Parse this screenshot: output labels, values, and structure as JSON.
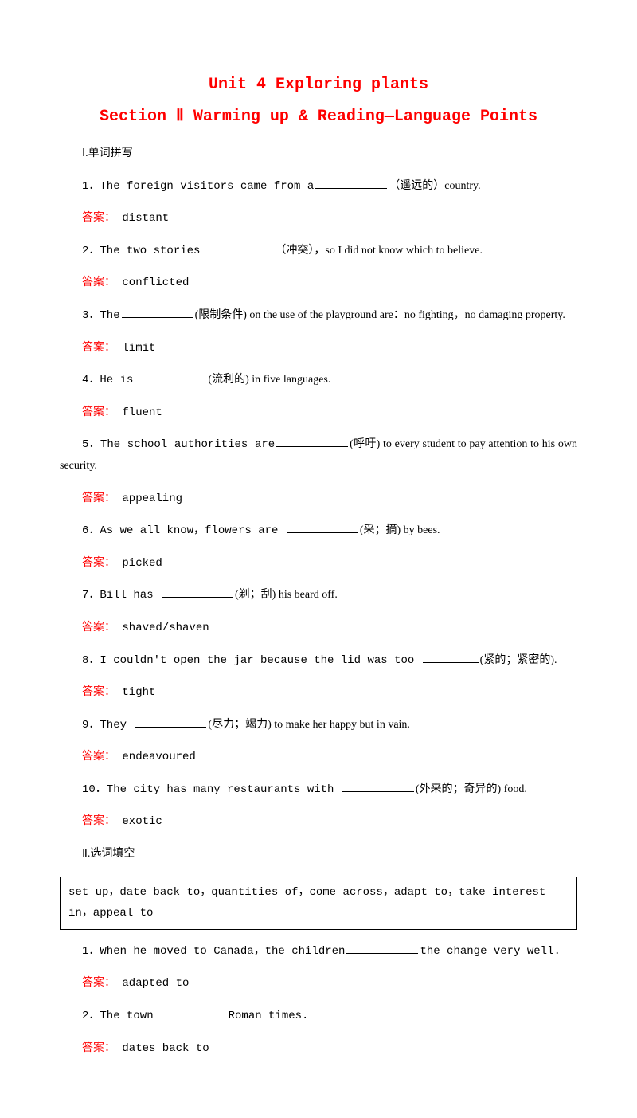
{
  "title1": "Unit 4  Exploring plants",
  "title2": "Section Ⅱ  Warming up & Reading—Language Points",
  "sectionI": "Ⅰ.单词拼写",
  "answerLabel": "答案：",
  "q1_a": "1．The foreign visitors came from  a",
  "q1_b": "（遥远的）country.",
  "a1": "  distant",
  "q2_a": "2．The two stories",
  "q2_b": "（冲突），so I did not know which to believe.",
  "a2": "  conflicted",
  "q3_a": "3．The",
  "q3_b": "(限制条件)  on  the  use  of  the  playground  are：no fighting，no damaging property.",
  "a3": "  limit",
  "q4_a": "4．He is",
  "q4_b": "(流利的) in five languages.",
  "a4": "  fluent",
  "q5_a": "5．The school authorities are",
  "q5_b": "(呼吁) to every student to pay attention to his own security.",
  "a5": "  appealing",
  "q6_a": "6．As we all know，flowers are ",
  "q6_b": "(采；摘) by bees.",
  "a6": "  picked",
  "q7_a": "7．Bill has ",
  "q7_b": "(剃；刮) his beard off.",
  "a7": "  shaved/shaven",
  "q8_a": "8．I  couldn't  open  the  jar  because  the  lid  was too ",
  "q8_b": "(紧的；紧密的).",
  "a8": "  tight",
  "q9_a": "9．They ",
  "q9_b": "(尽力；竭力) to make her happy but in vain.",
  "a9": "  endeavoured",
  "q10_a": "10．The city has many restaurants with ",
  "q10_b": "(外来的；奇异的) food.",
  "a10": "  exotic",
  "sectionII": "Ⅱ.选词填空",
  "wordbox": "set up，date back to，quantities of，come across，adapt to，take interest in，appeal to",
  "sq1_a": "1．When he moved to Canada，the children",
  "sq1_b": "the change very well.",
  "sa1": "  adapted to",
  "sq2_a": "2．The town",
  "sq2_b": "Roman times.",
  "sa2": "  dates back to"
}
